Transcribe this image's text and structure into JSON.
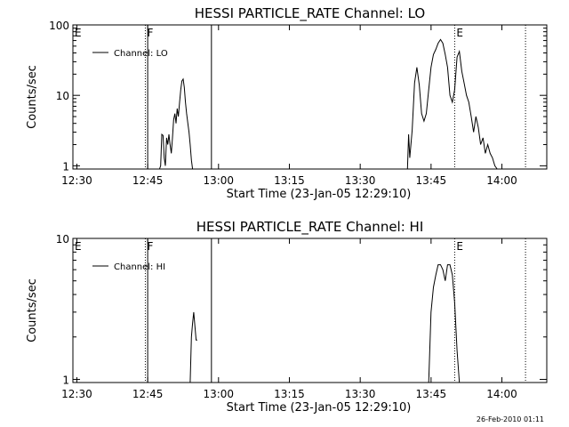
{
  "footer": {
    "stamp": "26-Feb-2010 01:11"
  },
  "chart_data": [
    {
      "type": "line",
      "title": "HESSI PARTICLE_RATE Channel: LO",
      "xlabel": "Start Time (23-Jan-05 12:29:10)",
      "ylabel": "Counts/sec",
      "yscale": "log",
      "xlim": [
        "12:29:10",
        "14:09:30"
      ],
      "ylim": [
        0.9,
        100
      ],
      "x_ticks": [
        "12:30",
        "12:45",
        "13:00",
        "13:15",
        "13:30",
        "13:45",
        "14:00"
      ],
      "y_ticks": [
        "1",
        "10",
        "100"
      ],
      "legend": {
        "position": "top-left",
        "entries": [
          "Channel: LO"
        ]
      },
      "markers": [
        {
          "label": "E",
          "time": "12:29:10",
          "style": "none"
        },
        {
          "label": "F",
          "time": "12:44:30",
          "style": "dotted"
        },
        {
          "label": "",
          "time": "12:45:00",
          "style": "solid"
        },
        {
          "label": "",
          "time": "12:58:30",
          "style": "solid"
        },
        {
          "label": "E",
          "time": "13:50:00",
          "style": "dotted"
        },
        {
          "label": "",
          "time": "14:05:00",
          "style": "dotted"
        }
      ],
      "series": [
        {
          "name": "Channel: LO",
          "x": [
            "12:47:30",
            "12:47:45",
            "12:48:00",
            "12:48:15",
            "12:48:30",
            "12:48:45",
            "12:49:00",
            "12:49:15",
            "12:49:30",
            "12:49:45",
            "12:50:00",
            "12:50:15",
            "12:50:30",
            "12:50:45",
            "12:51:00",
            "12:51:15",
            "12:51:30",
            "12:51:45",
            "12:52:00",
            "12:52:15",
            "12:52:30",
            "12:52:45",
            "12:53:00",
            "12:53:15",
            "12:53:30",
            "12:53:45",
            "12:54:00",
            "12:54:15",
            "12:54:30",
            "12:54:45",
            "12:55:00",
            "12:55:15",
            "12:55:30",
            "12:55:45"
          ],
          "y": [
            0.9,
            1,
            2.8,
            2.7,
            1.3,
            1,
            2.5,
            2.0,
            2.8,
            2.0,
            1.5,
            2.5,
            4.5,
            5.5,
            4.0,
            6.5,
            5.0,
            8.0,
            12.0,
            16.0,
            17.0,
            13.0,
            8.0,
            5.5,
            4.0,
            3.0,
            2.0,
            1.2,
            0.9,
            null,
            null,
            null,
            null,
            null
          ]
        },
        {
          "name": "Channel: LO",
          "x": [
            "13:40:00",
            "13:40:15",
            "13:40:30",
            "13:41:00",
            "13:41:30",
            "13:42:00",
            "13:42:30",
            "13:43:00",
            "13:43:30",
            "13:44:00",
            "13:44:30",
            "13:45:00",
            "13:45:30",
            "13:46:00",
            "13:46:30",
            "13:47:00",
            "13:47:30",
            "13:48:00",
            "13:48:30",
            "13:49:00",
            "13:49:30",
            "13:50:00",
            "13:50:30",
            "13:51:00",
            "13:51:30",
            "13:52:00",
            "13:52:30",
            "13:53:00",
            "13:53:30",
            "13:54:00",
            "13:54:30",
            "13:55:00",
            "13:55:30",
            "13:56:00",
            "13:56:30",
            "13:57:00",
            "13:57:30",
            "13:58:00",
            "13:58:30",
            "13:59:00"
          ],
          "y": [
            0.9,
            2.8,
            1.3,
            3.2,
            15,
            25,
            14,
            5.5,
            4.3,
            5.5,
            12,
            25,
            38,
            45,
            55,
            62,
            55,
            38,
            25,
            10,
            8,
            12,
            35,
            42,
            22,
            15,
            10,
            8,
            5,
            3,
            5,
            3.5,
            2,
            2.5,
            1.5,
            2,
            1.5,
            1.3,
            1,
            0.9
          ]
        }
      ]
    },
    {
      "type": "line",
      "title": "HESSI PARTICLE_RATE Channel: HI",
      "xlabel": "Start Time (23-Jan-05 12:29:10)",
      "ylabel": "Counts/sec",
      "yscale": "log",
      "xlim": [
        "12:29:10",
        "14:09:30"
      ],
      "ylim": [
        0.95,
        10
      ],
      "x_ticks": [
        "12:30",
        "12:45",
        "13:00",
        "13:15",
        "13:30",
        "13:45",
        "14:00"
      ],
      "y_ticks": [
        "1",
        "10"
      ],
      "legend": {
        "position": "top-left",
        "entries": [
          "Channel: HI"
        ]
      },
      "markers": [
        {
          "label": "E",
          "time": "12:29:10",
          "style": "none"
        },
        {
          "label": "F",
          "time": "12:44:30",
          "style": "dotted"
        },
        {
          "label": "",
          "time": "12:45:00",
          "style": "solid"
        },
        {
          "label": "",
          "time": "12:58:30",
          "style": "solid"
        },
        {
          "label": "E",
          "time": "13:50:00",
          "style": "dotted"
        },
        {
          "label": "",
          "time": "14:05:00",
          "style": "dotted"
        }
      ],
      "series": [
        {
          "name": "Channel: HI",
          "x": [
            "12:54:00",
            "12:54:15",
            "12:54:30",
            "12:54:45",
            "12:55:00",
            "12:55:15",
            "12:55:30"
          ],
          "y": [
            0.95,
            2.0,
            2.5,
            3.0,
            2.4,
            1.9,
            1.9
          ]
        },
        {
          "name": "Channel: HI",
          "x": [
            "13:44:30",
            "13:45:00",
            "13:45:30",
            "13:46:00",
            "13:46:30",
            "13:47:00",
            "13:47:30",
            "13:48:00",
            "13:48:30",
            "13:49:00",
            "13:49:30",
            "13:50:00",
            "13:50:30",
            "13:51:00"
          ],
          "y": [
            0.95,
            3.0,
            4.5,
            5.5,
            6.5,
            6.5,
            6.0,
            5.0,
            6.5,
            6.5,
            5.5,
            3.5,
            1.6,
            0.95
          ]
        }
      ]
    }
  ]
}
